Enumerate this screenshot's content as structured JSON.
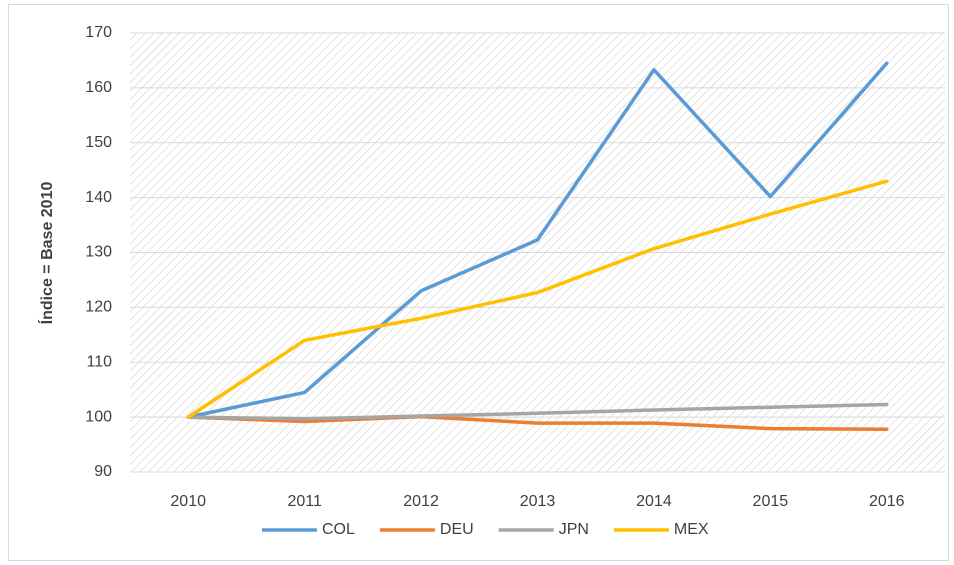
{
  "chart_data": {
    "type": "line",
    "y_label": "Índice = Base 2010",
    "categories": [
      "2010",
      "2011",
      "2012",
      "2013",
      "2014",
      "2015",
      "2016"
    ],
    "series": [
      {
        "name": "COL",
        "color": "#5b9bd5",
        "values": [
          100,
          104.5,
          123,
          132.3,
          163.3,
          140.2,
          164.5
        ]
      },
      {
        "name": "DEU",
        "color": "#ed7d31",
        "values": [
          100,
          99.2,
          100.1,
          98.9,
          98.9,
          97.9,
          97.8
        ]
      },
      {
        "name": "JPN",
        "color": "#a5a5a5",
        "values": [
          100,
          99.7,
          100.2,
          100.7,
          101.3,
          101.8,
          102.3
        ]
      },
      {
        "name": "MEX",
        "color": "#ffc000",
        "values": [
          100,
          114,
          118,
          122.7,
          130.7,
          137,
          143
        ]
      }
    ],
    "ylim": [
      90,
      170
    ],
    "yticks": [
      90,
      100,
      110,
      120,
      130,
      140,
      150,
      160,
      170
    ],
    "grid": true,
    "legend": "bottom"
  }
}
